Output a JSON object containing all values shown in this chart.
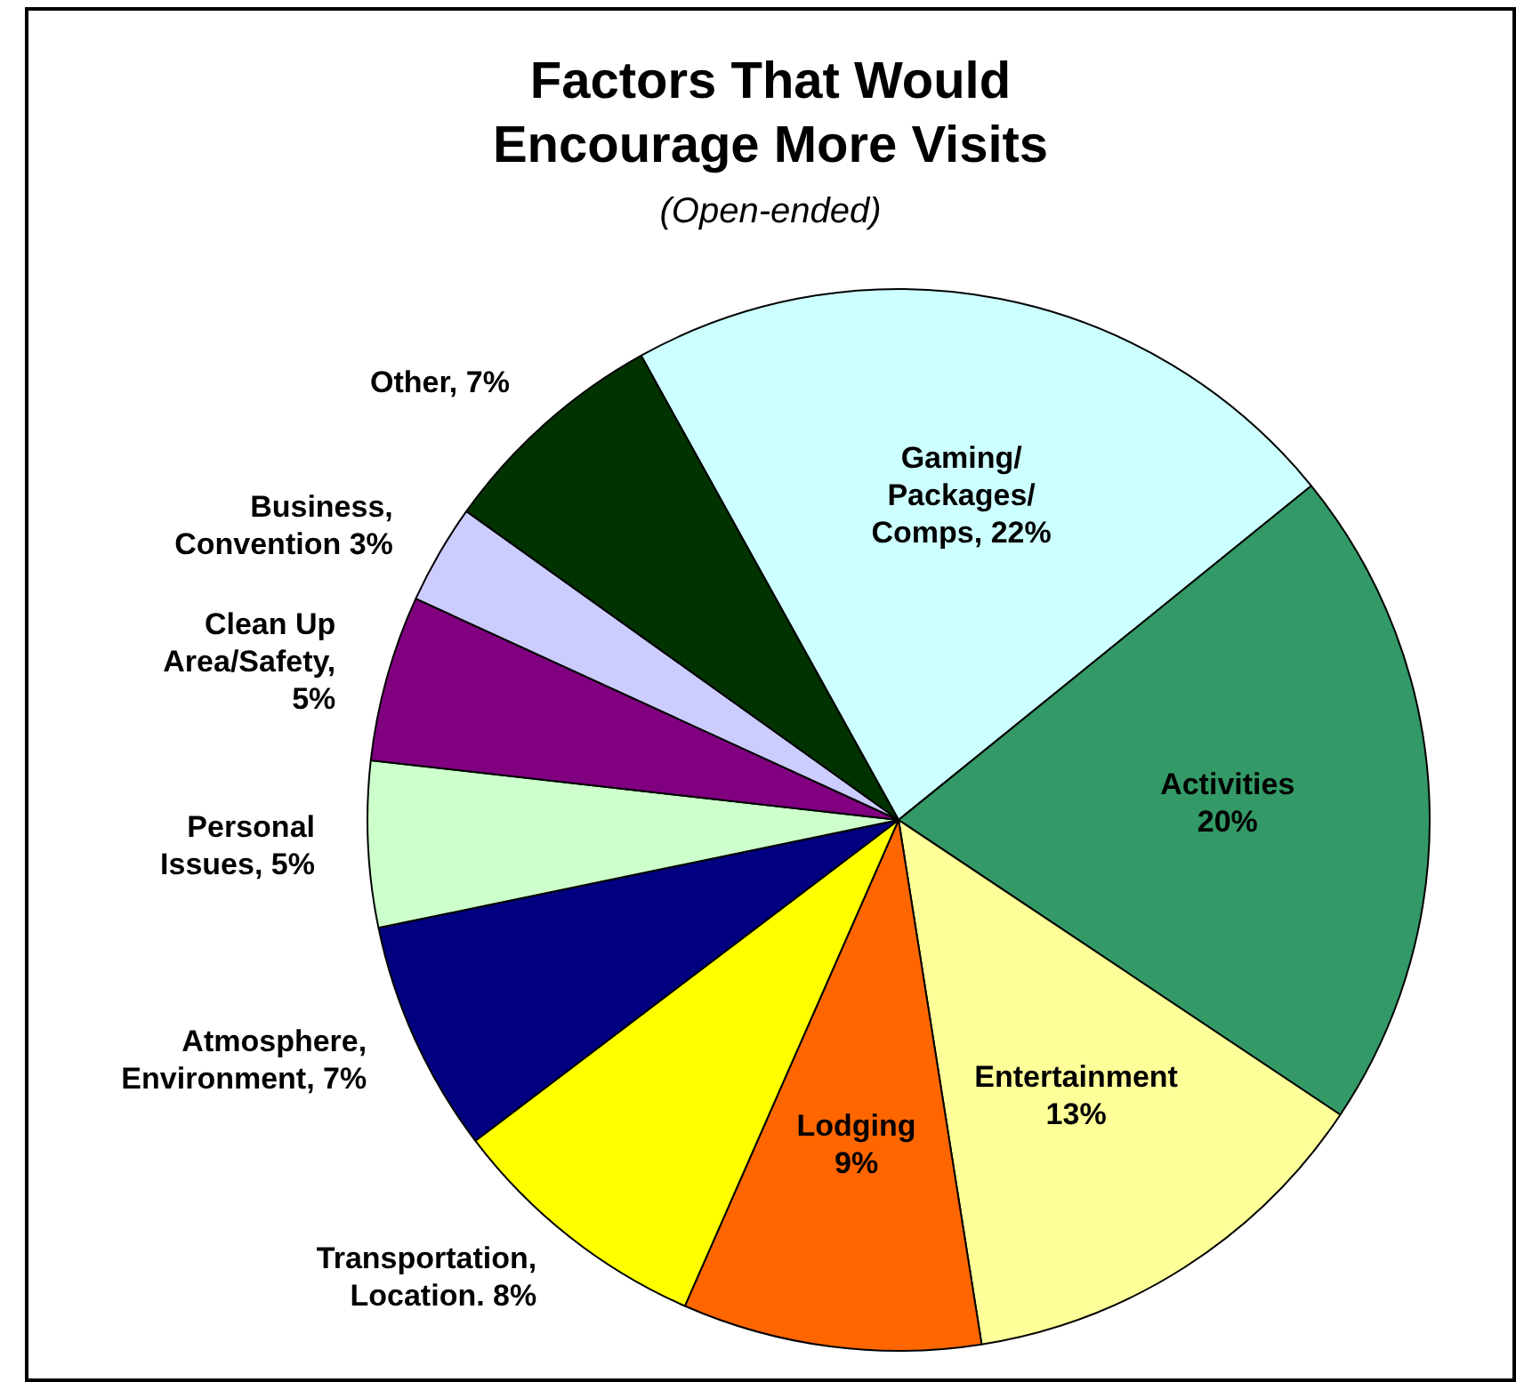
{
  "chart_data": {
    "type": "pie",
    "title": "Factors That Would\nEncourage More Visits",
    "subtitle": "(Open-ended)",
    "categories": [
      "Gaming/\nPackages/\nComps, 22%",
      "Activities\n20%",
      "Entertainment\n13%",
      "Lodging\n9%",
      "Transportation,\nLocation. 8%",
      "Atmosphere,\nEnvironment, 7%",
      "Personal\nIssues, 5%",
      "Clean Up\nArea/Safety,\n5%",
      "Business,\nConvention 3%",
      "Other, 7%"
    ],
    "values": [
      22,
      20,
      13,
      9,
      8,
      7,
      5,
      5,
      3,
      7
    ],
    "colors": [
      "#ccffff",
      "#339966",
      "#ffff99",
      "#ff6600",
      "#ffff00",
      "#000080",
      "#ccffcc",
      "#800080",
      "#ccccff",
      "#003300"
    ],
    "legend": false
  }
}
